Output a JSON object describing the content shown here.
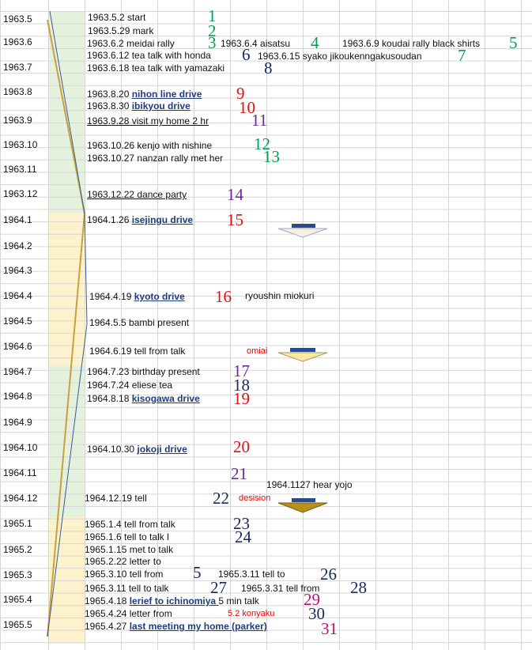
{
  "colors": {
    "green_band": "#e4f1dc",
    "yellow_band": "#fdf2cc",
    "grid_line": "#d6d6d6",
    "gold_line": "#c9a13a",
    "blue_line": "#3c5a99"
  },
  "row_labels": [
    "1963.5",
    "1963.6",
    "1963.7",
    "1963.8",
    "1963.9",
    "1963.10",
    "1963.11",
    "1963.12",
    "1964.1",
    "1964.2",
    "1964.3",
    "1964.4",
    "1964.5",
    "1964.6",
    "1964.7",
    "1964.8",
    "1964.9",
    "1964.10",
    "1964.11",
    "1964.12",
    "1965.1",
    "1965.2",
    "1965.3",
    "1965.4",
    "1965.5"
  ],
  "entries": {
    "e1": "1963.5.2 start",
    "e2": "1963.5.29 mark",
    "e3": "1963.6.2  meidai rally",
    "e4": "1963.6.4  aisatsu",
    "e5": "1963.6.9  koudai rally  black shirts",
    "e6": "1963.6.12  tea talk  with honda",
    "e7": "1963.6.15  syako  jikoukenngakusoudan",
    "e8": "1963.6.18  tea talk  with yamazaki",
    "e9_date": "1963.8.20 ",
    "e9_title": "nihon line drive",
    "e10_date": "1963.8.30 ",
    "e10_title": "ibikyou drive",
    "e11": "1963.9.28  visit my home 2 hr",
    "e12": "1963.10.26 kenjo with nishine",
    "e13": "1963.10.27 nanzan rally  met her",
    "e14": "1963.12.22 dance party",
    "e15_date": "1964.1.26  ",
    "e15_title": "isejingu drive",
    "e16_date": "1964.4.19  ",
    "e16_title": "kyoto drive",
    "e16_note": "ryoushin miokuri",
    "e16b": "1964.5.5 bambi   present",
    "e16c": "1964.6.19  tell  from talk",
    "e16c_note": "omiai",
    "e17": "1964.7.23  birthday present",
    "e18": "1964.7.24  eliese  tea",
    "e19_date": "1964.8.18  ",
    "e19_title": "kisogawa drive",
    "e20_date": "1964.10.30  ",
    "e20_title": "jokoji drive",
    "e21": "1964.1127  hear yojo",
    "e22": "1964.12.19  tell",
    "e22_note": "desision",
    "e23": "1965.1.4  tell  from talk",
    "e24": "1965.1.6  tell  to talk   l",
    "e24b": "1965.1.15  met  to talk",
    "e24c": "1965.2.22  letter to",
    "e25": "1965.3.10 tell  from",
    "e26": "1965.3.11 tell  to",
    "e27": "1965.3.11  tell  to talk",
    "e28": "1965.3.31  tell  from",
    "e29_date": "1965.4.18  ",
    "e29_title": "lerief to ichinomiya ",
    "e29_note": " 5 min talk",
    "e30": "1965.4.24   letter from",
    "e30_note": "5.2    konyaku",
    "e31_date": "1965.4.27  ",
    "e31_title": "last meeting  my home  (parker)"
  },
  "numbers": {
    "n1": "1",
    "n2": "2",
    "n3": "3",
    "n4": "4",
    "n5": "5",
    "n6": "6",
    "n7": "7",
    "n8": "8",
    "n9": "9",
    "n10": "10",
    "n11": "11",
    "n12": "12",
    "n13": "13",
    "n14": "14",
    "n15": "15",
    "n16": "16",
    "n17": "17",
    "n18": "18",
    "n19": "19",
    "n20": "20",
    "n21": "21",
    "n22": "22",
    "n23": "23",
    "n24": "24",
    "n25": "5",
    "n26": "26",
    "n27": "27",
    "n28": "28",
    "n29": "29",
    "n30": "30",
    "n31": "31"
  }
}
